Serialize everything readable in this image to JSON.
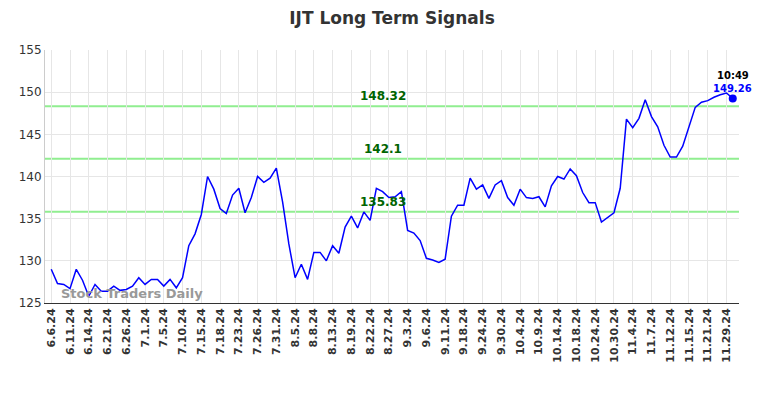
{
  "chart_data": {
    "type": "line",
    "title": "IJT Long Term Signals",
    "categories": [
      "6.6.24",
      null,
      null,
      "6.11.24",
      null,
      null,
      "6.14.24",
      null,
      null,
      "6.21.24",
      null,
      null,
      "6.26.24",
      null,
      null,
      "7.1.24",
      null,
      null,
      "7.5.24",
      null,
      null,
      "7.10.24",
      null,
      null,
      "7.15.24",
      null,
      null,
      "7.18.24",
      null,
      null,
      "7.23.24",
      null,
      null,
      "7.26.24",
      null,
      null,
      "7.31.24",
      null,
      null,
      "8.5.24",
      null,
      null,
      "8.8.24",
      null,
      null,
      "8.13.24",
      null,
      null,
      "8.19.24",
      null,
      null,
      "8.22.24",
      null,
      null,
      "8.27.24",
      null,
      null,
      "9.3.24",
      null,
      null,
      "9.6.24",
      null,
      null,
      "9.11.24",
      null,
      null,
      "9.18.24",
      null,
      null,
      "9.24.24",
      null,
      null,
      "9.30.24",
      null,
      null,
      "10.4.24",
      null,
      null,
      "10.9.24",
      null,
      null,
      "10.14.24",
      null,
      null,
      "10.18.24",
      null,
      null,
      "10.24.24",
      null,
      null,
      "10.30.24",
      null,
      null,
      "11.4.24",
      null,
      null,
      "11.7.24",
      null,
      null,
      "11.12.24",
      null,
      null,
      "11.15.24",
      null,
      null,
      "11.21.24",
      null,
      null,
      "11.29.24",
      null
    ],
    "values": [
      129,
      127.3,
      127.2,
      126.7,
      129,
      127.7,
      125.8,
      127.2,
      126.4,
      126.4,
      127,
      126.5,
      126.6,
      127,
      128,
      127.2,
      127.8,
      127.8,
      127,
      127.8,
      126.8,
      128,
      131.8,
      133.2,
      135.5,
      140,
      138.5,
      136.2,
      135.6,
      137.8,
      138.6,
      135.7,
      137.5,
      140,
      139.3,
      139.8,
      141,
      137,
      132,
      128,
      129.6,
      127.8,
      131,
      131,
      130,
      131.8,
      130.9,
      134,
      135.3,
      133.9,
      135.8,
      134.8,
      138.6,
      138.2,
      137.5,
      137.6,
      138.2,
      133.6,
      133.3,
      132.4,
      130.3,
      130.1,
      129.8,
      130.2,
      135.3,
      136.6,
      136.6,
      139.8,
      138.5,
      139,
      137.4,
      139,
      139.5,
      137.5,
      136.6,
      138.5,
      137.5,
      137.4,
      137.6,
      136.4,
      138.9,
      140,
      139.7,
      140.9,
      140.1,
      138.1,
      136.9,
      136.9,
      134.6,
      135.1,
      135.7,
      138.6,
      146.8,
      145.8,
      146.9,
      149.1,
      147.1,
      145.9,
      143.7,
      142.3,
      142.3,
      143.6,
      145.8,
      148.2,
      148.8,
      149,
      149.4,
      149.7,
      149.9,
      149.26
    ],
    "color": "#0000ff",
    "ylim": [
      125,
      155
    ],
    "yticks": [
      125,
      130,
      135,
      140,
      145,
      150,
      155
    ],
    "grid": true,
    "levels": [
      148.32,
      142.1,
      135.83
    ],
    "level_color": "#90ee90",
    "last_point": {
      "time": "10:49",
      "value": 149.26
    },
    "watermark": "Stock Traders Daily"
  }
}
